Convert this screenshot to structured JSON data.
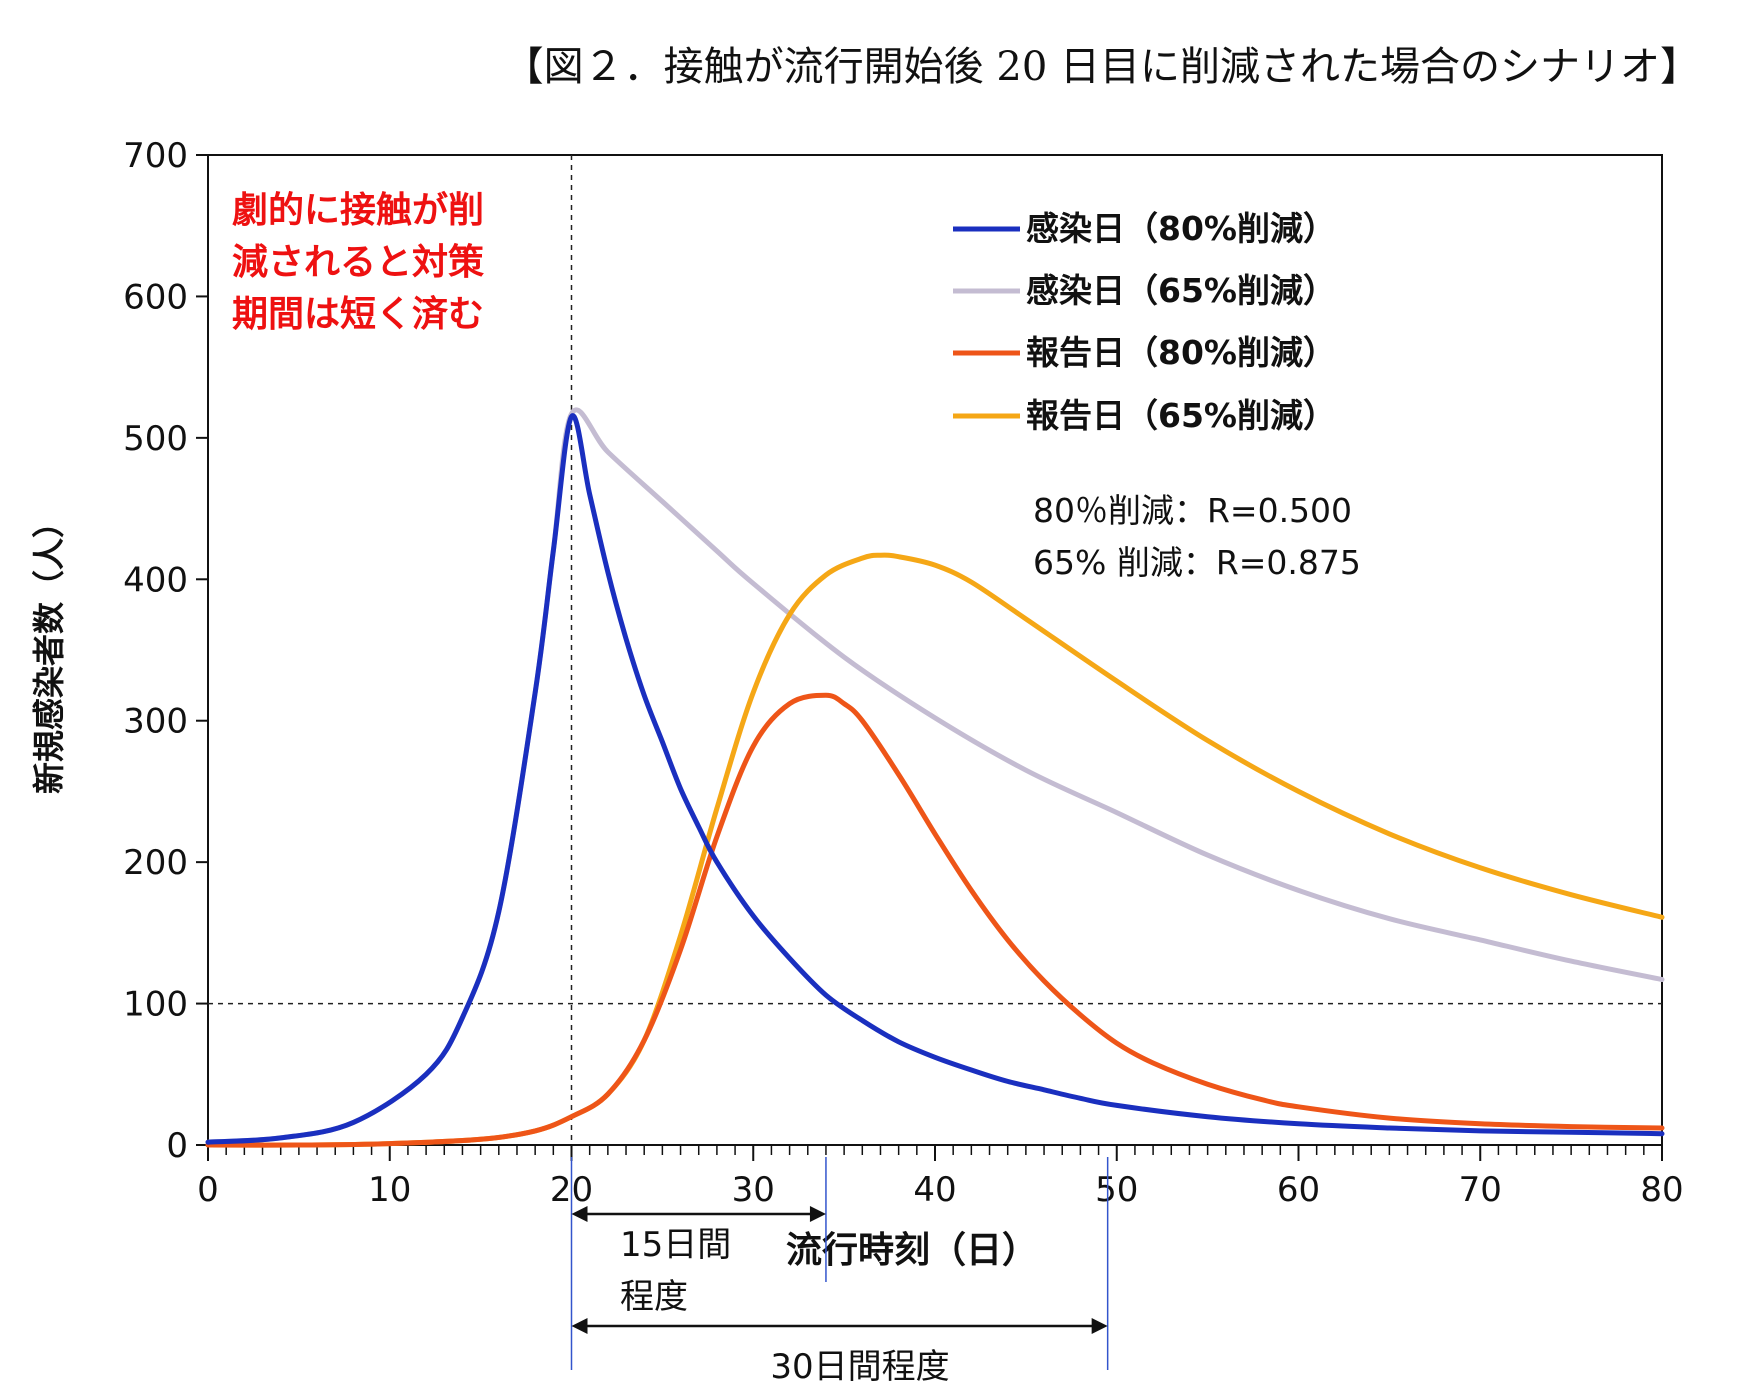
{
  "title": "【図２．接触が流行開始後 20 日目に削減された場合のシナリオ】",
  "chart_data": {
    "type": "line",
    "title": "【図２．接触が流行開始後 20 日目に削減された場合のシナリオ】",
    "xlabel": "流行時刻（日）",
    "ylabel": "新規感染者数（人）",
    "xlim": [
      0,
      80
    ],
    "ylim": [
      0,
      700
    ],
    "xticks": [
      0,
      10,
      20,
      30,
      40,
      50,
      60,
      70,
      80
    ],
    "yticks": [
      0,
      100,
      200,
      300,
      400,
      500,
      600,
      700
    ],
    "grid": false,
    "legend_position": "top-right",
    "series": [
      {
        "name": "感染日（80%削減）",
        "color": "#1a2fbf",
        "x": [
          0,
          4,
          8,
          12,
          14,
          16,
          18,
          19,
          20,
          21,
          22,
          23,
          24,
          25,
          26,
          27,
          28,
          30,
          32,
          34,
          36,
          38,
          40,
          42,
          44,
          46,
          48,
          50,
          55,
          60,
          65,
          70,
          75,
          80
        ],
        "y": [
          2,
          5,
          16,
          50,
          90,
          165,
          320,
          420,
          515,
          460,
          405,
          358,
          318,
          285,
          252,
          225,
          200,
          162,
          132,
          106,
          88,
          73,
          62,
          53,
          45,
          39,
          33,
          28,
          20,
          15,
          12,
          10,
          9,
          8
        ]
      },
      {
        "name": "感染日（65%削減）",
        "color": "#c4bcd2",
        "x": [
          0,
          4,
          8,
          12,
          14,
          16,
          18,
          19,
          20,
          22,
          25,
          28,
          30,
          35,
          40,
          45,
          50,
          55,
          60,
          65,
          70,
          75,
          80
        ],
        "y": [
          2,
          5,
          16,
          50,
          90,
          165,
          320,
          420,
          517,
          490,
          455,
          420,
          397,
          345,
          302,
          265,
          235,
          205,
          180,
          160,
          145,
          130,
          117
        ]
      },
      {
        "name": "報告日（80%削減）",
        "color": "#ee5518",
        "x": [
          0,
          5,
          10,
          15,
          18,
          20,
          22,
          24,
          26,
          28,
          30,
          32,
          34,
          35,
          36,
          38,
          40,
          42,
          44,
          46,
          48,
          50,
          52,
          55,
          58,
          60,
          65,
          70,
          75,
          80
        ],
        "y": [
          0,
          0,
          1,
          4,
          10,
          20,
          36,
          74,
          138,
          218,
          282,
          312,
          318,
          312,
          300,
          262,
          220,
          180,
          145,
          116,
          92,
          72,
          58,
          43,
          32,
          27,
          19,
          15,
          13,
          12
        ]
      },
      {
        "name": "報告日（65%削減）",
        "color": "#f5a716",
        "x": [
          0,
          5,
          10,
          15,
          18,
          20,
          22,
          24,
          26,
          28,
          30,
          32,
          34,
          36,
          37,
          38,
          40,
          42,
          45,
          50,
          55,
          60,
          65,
          70,
          75,
          80
        ],
        "y": [
          0,
          0,
          1,
          4,
          10,
          20,
          36,
          74,
          148,
          238,
          320,
          375,
          403,
          415,
          417,
          416,
          410,
          398,
          372,
          328,
          286,
          250,
          220,
          196,
          177,
          161
        ]
      }
    ],
    "reference_lines": [
      {
        "axis": "y",
        "value": 100
      },
      {
        "axis": "x",
        "value": 20
      }
    ],
    "annotations": {
      "note_lines": [
        "劇的に接触が削",
        "減されると対策",
        "期間は短く済む"
      ],
      "r_lines": [
        "80％削減：R=0.500",
        "65% 削減：R=0.875"
      ],
      "bracket_short": {
        "from": 20,
        "to": 34,
        "label_lines": [
          "15日間",
          "程度"
        ]
      },
      "bracket_long": {
        "from": 20,
        "to": 49.5,
        "label": "30日間程度"
      }
    }
  }
}
